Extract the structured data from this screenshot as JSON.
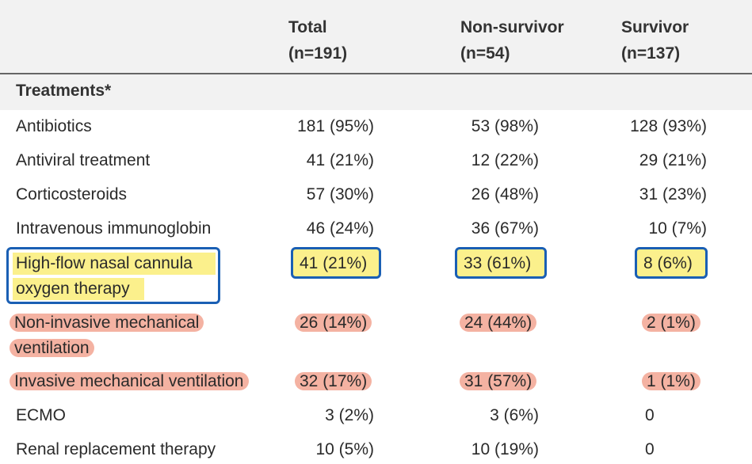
{
  "columns": {
    "total": {
      "title": "Total",
      "n": "(n=191)"
    },
    "non_survivor": {
      "title": "Non-survivor",
      "n": "(n=54)"
    },
    "survivor": {
      "title": "Survivor",
      "n": "(n=137)"
    }
  },
  "section_title": "Treatments*",
  "rows": [
    {
      "label": "Antibiotics",
      "total": "181 (95%)",
      "non_survivor": "53 (98%)",
      "survivor": "128 (93%)"
    },
    {
      "label": "Antiviral treatment",
      "total": "41 (21%)",
      "non_survivor": "12 (22%)",
      "survivor": "29 (21%)"
    },
    {
      "label": "Corticosteroids",
      "total": "57 (30%)",
      "non_survivor": "26 (48%)",
      "survivor": "31 (23%)"
    },
    {
      "label": "Intravenous immunoglobin",
      "total": "46 (24%)",
      "non_survivor": "36 (67%)",
      "survivor": "10 (7%)"
    },
    {
      "label_line1": "High-flow nasal cannula",
      "label_line2": "oxygen therapy",
      "total": "41 (21%)",
      "non_survivor": "33 (61%)",
      "survivor": "8 (6%)"
    },
    {
      "label_line1": "Non-invasive mechanical",
      "label_line2": "ventilation",
      "total": "26 (14%)",
      "non_survivor": "24 (44%)",
      "survivor": "2 (1%)"
    },
    {
      "label": "Invasive mechanical ventilation",
      "total": "32 (17%)",
      "non_survivor": "31 (57%)",
      "survivor": "1 (1%)"
    },
    {
      "label": "ECMO",
      "total": "3 (2%)",
      "non_survivor": "3 (6%)",
      "survivor": "0"
    },
    {
      "label": "Renal replacement therapy",
      "total": "10 (5%)",
      "non_survivor": "10 (19%)",
      "survivor": "0"
    }
  ],
  "highlight_colors": {
    "yellow": "#fbf08c",
    "red": "#f4b2a2",
    "box": "#1a5fb4"
  }
}
